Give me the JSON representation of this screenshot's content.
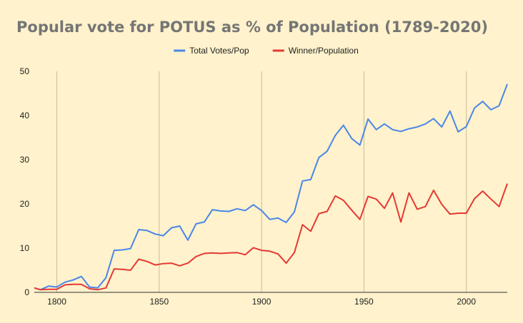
{
  "chart_data": {
    "type": "line",
    "title": "Popular vote for POTUS as % of Population (1789-2020)",
    "xlabel": "",
    "ylabel": "",
    "xlim": [
      1789,
      2020
    ],
    "ylim": [
      0,
      50
    ],
    "x_ticks": [
      1800,
      1850,
      1900,
      1950,
      2000
    ],
    "y_ticks": [
      0,
      10,
      20,
      30,
      40,
      50
    ],
    "grid": {
      "vertical": true,
      "horizontal": false
    },
    "legend_position": "top-center",
    "background": "#fff2cc",
    "x": [
      1789,
      1792,
      1796,
      1800,
      1804,
      1808,
      1812,
      1816,
      1820,
      1824,
      1828,
      1832,
      1836,
      1840,
      1844,
      1848,
      1852,
      1856,
      1860,
      1864,
      1868,
      1872,
      1876,
      1880,
      1884,
      1888,
      1892,
      1896,
      1900,
      1904,
      1908,
      1912,
      1916,
      1920,
      1924,
      1928,
      1932,
      1936,
      1940,
      1944,
      1948,
      1952,
      1956,
      1960,
      1964,
      1968,
      1972,
      1976,
      1980,
      1984,
      1988,
      1992,
      1996,
      2000,
      2004,
      2008,
      2012,
      2016,
      2020
    ],
    "series": [
      {
        "name": "Total Votes/Pop",
        "color": "#4a86e8",
        "values": [
          1.0,
          0.6,
          1.4,
          1.2,
          2.3,
          2.8,
          3.6,
          1.2,
          1.0,
          3.3,
          9.5,
          9.6,
          9.9,
          14.2,
          14.0,
          13.2,
          12.8,
          14.6,
          15.0,
          11.8,
          15.5,
          15.9,
          18.7,
          18.4,
          18.3,
          18.9,
          18.5,
          19.8,
          18.5,
          16.5,
          16.8,
          15.8,
          18.2,
          25.2,
          25.5,
          30.5,
          31.9,
          35.5,
          37.8,
          34.8,
          33.3,
          39.2,
          36.8,
          38.1,
          36.8,
          36.4,
          37.0,
          37.4,
          38.1,
          39.3,
          37.4,
          41.0,
          36.3,
          37.5,
          41.7,
          43.2,
          41.3,
          42.2,
          47.1
        ]
      },
      {
        "name": "Winner/Population",
        "color": "#e53935",
        "values": [
          1.0,
          0.6,
          0.7,
          0.7,
          1.7,
          1.8,
          1.8,
          0.8,
          0.6,
          1.0,
          5.3,
          5.2,
          5.0,
          7.5,
          7.0,
          6.2,
          6.5,
          6.6,
          6.0,
          6.6,
          8.1,
          8.8,
          8.9,
          8.8,
          8.9,
          9.0,
          8.5,
          10.1,
          9.5,
          9.3,
          8.7,
          6.6,
          9.0,
          15.3,
          13.8,
          17.8,
          18.3,
          21.8,
          20.8,
          18.6,
          16.5,
          21.7,
          21.1,
          19.0,
          22.5,
          15.9,
          22.5,
          18.8,
          19.4,
          23.1,
          19.9,
          17.7,
          17.9,
          17.9,
          21.2,
          22.9,
          21.1,
          19.4,
          24.6
        ]
      }
    ]
  }
}
